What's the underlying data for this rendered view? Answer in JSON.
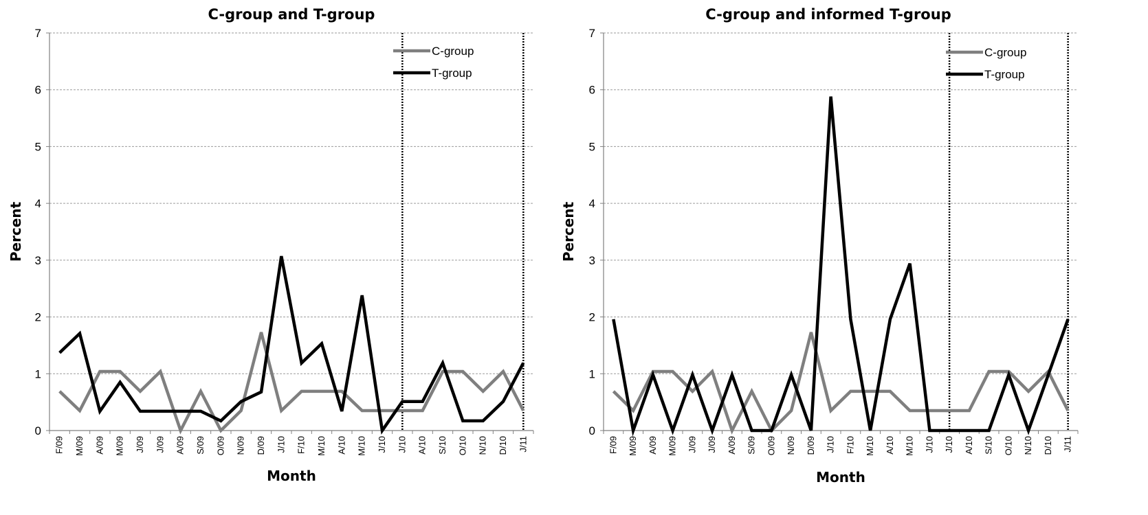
{
  "chart_data": [
    {
      "type": "line",
      "title": "C-group and T-group",
      "xlabel": "Month",
      "ylabel": "Percent",
      "ylim": [
        0,
        7
      ],
      "yticks": [
        "0",
        "1",
        "2",
        "3",
        "4",
        "5",
        "6",
        "7"
      ],
      "grid": true,
      "legend_position": "top-right",
      "categories": [
        "F/09",
        "M/09",
        "A/09",
        "M/09",
        "J/09",
        "J/09",
        "A/09",
        "S/09",
        "O/09",
        "N/09",
        "D/09",
        "J/10",
        "F/10",
        "M/10",
        "A/10",
        "M/10",
        "J/10",
        "J/10",
        "A/10",
        "S/10",
        "O/10",
        "N/10",
        "D/10",
        "J/11"
      ],
      "vertical_markers": [
        "J/10",
        "J/11"
      ],
      "series": [
        {
          "name": "C-group",
          "color": "#7f7f7f",
          "values": [
            0.69,
            0.35,
            1.04,
            1.04,
            0.69,
            1.04,
            0.0,
            0.69,
            0.0,
            0.35,
            1.73,
            0.35,
            0.69,
            0.69,
            0.69,
            0.35,
            0.35,
            0.35,
            0.35,
            1.04,
            1.04,
            0.69,
            1.04,
            0.35
          ]
        },
        {
          "name": "T-group",
          "color": "#000000",
          "values": [
            1.37,
            1.71,
            0.34,
            0.85,
            0.34,
            0.34,
            0.34,
            0.34,
            0.17,
            0.51,
            0.68,
            3.07,
            1.19,
            1.53,
            0.34,
            2.38,
            0.0,
            0.51,
            0.51,
            1.19,
            0.17,
            0.17,
            0.51,
            1.19
          ]
        }
      ]
    },
    {
      "type": "line",
      "title": "C-group and informed T-group",
      "xlabel": "Month",
      "ylabel": "Percent",
      "ylim": [
        0,
        7
      ],
      "yticks": [
        "0",
        "1",
        "2",
        "3",
        "4",
        "5",
        "6",
        "7"
      ],
      "grid": true,
      "legend_position": "top-right",
      "categories": [
        "F/09",
        "M/09",
        "A/09",
        "M/09",
        "J/09",
        "J/09",
        "A/09",
        "S/09",
        "O/09",
        "N/09",
        "D/09",
        "J/10",
        "F/10",
        "M/10",
        "A/10",
        "M/10",
        "J/10",
        "J/10",
        "A/10",
        "S/10",
        "O/10",
        "N/10",
        "D/10",
        "J/11"
      ],
      "vertical_markers": [
        "J/10",
        "J/11"
      ],
      "series": [
        {
          "name": "C-group",
          "color": "#7f7f7f",
          "values": [
            0.69,
            0.35,
            1.04,
            1.04,
            0.69,
            1.04,
            0.0,
            0.69,
            0.0,
            0.35,
            1.73,
            0.35,
            0.69,
            0.69,
            0.69,
            0.35,
            0.35,
            0.35,
            0.35,
            1.04,
            1.04,
            0.69,
            1.04,
            0.35
          ]
        },
        {
          "name": "T-group",
          "color": "#000000",
          "values": [
            1.96,
            0.0,
            0.98,
            0.0,
            0.98,
            0.0,
            0.98,
            0.0,
            0.0,
            0.98,
            0.0,
            5.88,
            1.96,
            0.0,
            1.96,
            2.94,
            0.0,
            0.0,
            0.0,
            0.0,
            0.98,
            0.0,
            0.98,
            1.96
          ]
        }
      ]
    }
  ]
}
